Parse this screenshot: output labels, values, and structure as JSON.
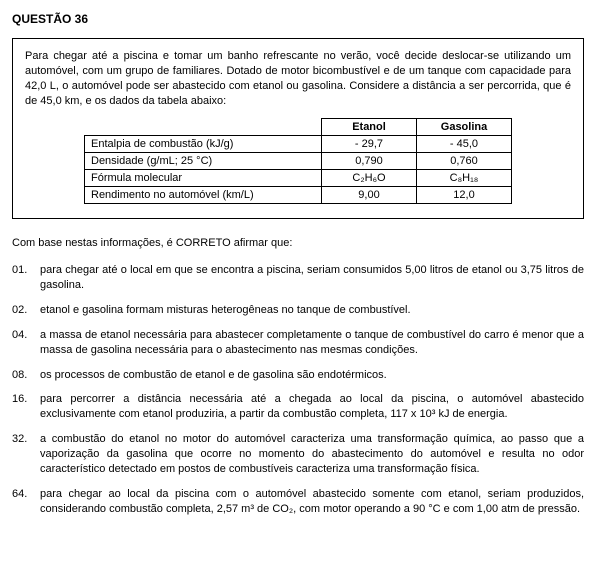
{
  "header": "QUESTÃO 36",
  "intro": "Para chegar até a piscina e tomar um banho refrescante no verão, você decide deslocar-se utilizando um automóvel, com um grupo de familiares. Dotado de motor bicombustível e de um tanque com capacidade para 42,0 L, o automóvel pode ser abastecido com etanol ou gasolina. Considere a distância a ser percorrida, que é de 45,0 km, e os dados da tabela abaixo:",
  "table": {
    "col1": "Etanol",
    "col2": "Gasolina",
    "rows": [
      {
        "label": "Entalpia de combustão (kJ/g)",
        "c1": "- 29,7",
        "c2": "- 45,0"
      },
      {
        "label": "Densidade (g/mL; 25 °C)",
        "c1": "0,790",
        "c2": "0,760"
      },
      {
        "label": "Fórmula molecular",
        "c1": "C₂H₆O",
        "c2": "C₈H₁₈"
      },
      {
        "label": "Rendimento no automóvel (km/L)",
        "c1": "9,00",
        "c2": "12,0"
      }
    ]
  },
  "prompt": "Com base nestas informações, é CORRETO afirmar que:",
  "options": [
    {
      "num": "01.",
      "text": "para chegar até o local em que se encontra a piscina, seriam consumidos 5,00 litros de etanol ou 3,75 litros de gasolina."
    },
    {
      "num": "02.",
      "text": "etanol e gasolina formam misturas heterogêneas no tanque de combustível."
    },
    {
      "num": "04.",
      "text": "a massa de etanol necessária para abastecer completamente o tanque de combustível do carro é menor que a massa de gasolina necessária para o abastecimento nas mesmas condições."
    },
    {
      "num": "08.",
      "text": "os processos de combustão de etanol e de gasolina são endotérmicos."
    },
    {
      "num": "16.",
      "text": "para percorrer a distância necessária até a chegada ao local da piscina, o automóvel abastecido exclusivamente com etanol produziria, a partir da combustão completa, 117 x 10³ kJ de energia."
    },
    {
      "num": "32.",
      "text": "a combustão do etanol no motor do automóvel caracteriza uma transformação química, ao passo que a vaporização da gasolina que ocorre no momento do abastecimento do automóvel e resulta no odor característico detectado em postos de combustíveis caracteriza uma transformação física."
    },
    {
      "num": "64.",
      "text": "para chegar ao local da piscina com o automóvel abastecido somente com etanol, seriam produzidos, considerando combustão completa, 2,57 m³ de CO₂, com motor operando a 90 °C e com 1,00 atm de pressão."
    }
  ]
}
